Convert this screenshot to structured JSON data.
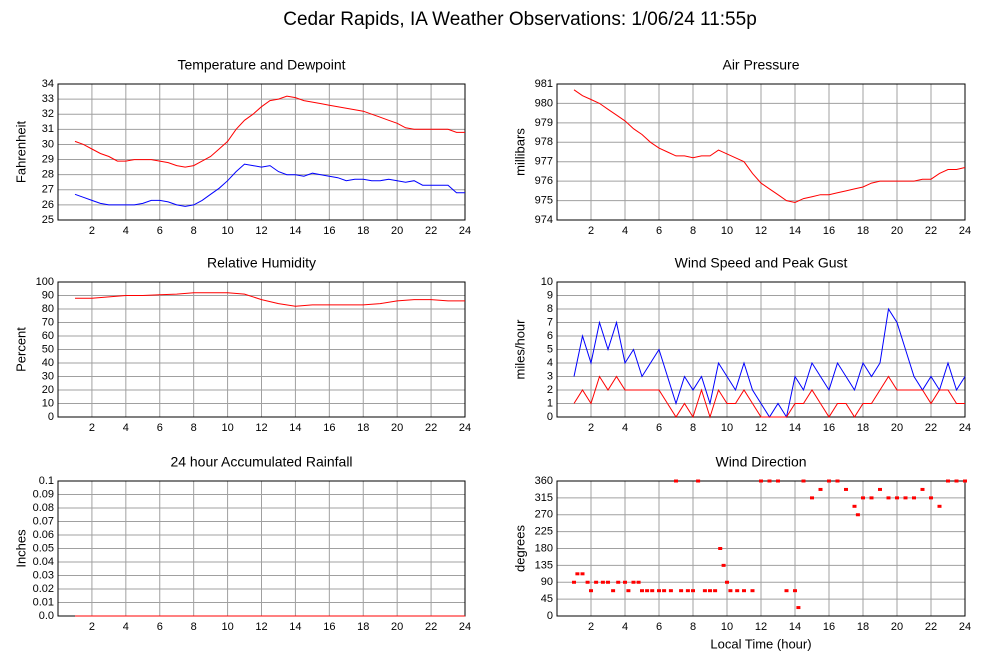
{
  "title": "Cedar Rapids, IA Weather Observations: 1/06/24 11:55p",
  "chart_data": [
    {
      "type": "line",
      "title": "Temperature and Dewpoint",
      "ylabel": "Fahrenheit",
      "x": [
        1,
        1.5,
        2,
        2.5,
        3,
        3.5,
        4,
        4.5,
        5,
        5.5,
        6,
        6.5,
        7,
        7.5,
        8,
        8.5,
        9,
        9.5,
        10,
        10.5,
        11,
        11.5,
        12,
        12.5,
        13,
        13.5,
        14,
        14.5,
        15,
        15.5,
        16,
        16.5,
        17,
        17.5,
        18,
        18.5,
        19,
        19.5,
        20,
        20.5,
        21,
        21.5,
        22,
        22.5,
        23,
        23.5,
        24
      ],
      "series": [
        {
          "color": "#ff0000",
          "values": [
            30.2,
            30.0,
            29.7,
            29.4,
            29.2,
            28.9,
            28.9,
            29.0,
            29.0,
            29.0,
            28.9,
            28.8,
            28.6,
            28.5,
            28.6,
            28.9,
            29.2,
            29.7,
            30.2,
            31.0,
            31.6,
            32.0,
            32.5,
            32.9,
            33.0,
            33.2,
            33.1,
            32.9,
            32.8,
            32.7,
            32.6,
            32.5,
            32.4,
            32.3,
            32.2,
            32.0,
            31.8,
            31.6,
            31.4,
            31.1,
            31.0,
            31.0,
            31.0,
            31.0,
            31.0,
            30.8,
            30.8
          ]
        },
        {
          "color": "#0000ff",
          "values": [
            26.7,
            26.5,
            26.3,
            26.1,
            26.0,
            26.0,
            26.0,
            26.0,
            26.1,
            26.3,
            26.3,
            26.2,
            26.0,
            25.9,
            26.0,
            26.3,
            26.7,
            27.1,
            27.6,
            28.2,
            28.7,
            28.6,
            28.5,
            28.6,
            28.2,
            28.0,
            28.0,
            27.9,
            28.1,
            28.0,
            27.9,
            27.8,
            27.6,
            27.7,
            27.7,
            27.6,
            27.6,
            27.7,
            27.6,
            27.5,
            27.6,
            27.3,
            27.3,
            27.3,
            27.3,
            26.8,
            26.8
          ]
        }
      ],
      "xlim": [
        0,
        24
      ],
      "xticks": [
        2,
        4,
        6,
        8,
        10,
        12,
        14,
        16,
        18,
        20,
        22,
        24
      ],
      "ylim": [
        25,
        34
      ],
      "yticks": [
        25,
        26,
        27,
        28,
        29,
        30,
        31,
        32,
        33,
        34
      ],
      "grid": true
    },
    {
      "type": "line",
      "title": "Air Pressure",
      "ylabel": "millibars",
      "x": [
        1,
        1.5,
        2,
        2.5,
        3,
        3.5,
        4,
        4.5,
        5,
        5.5,
        6,
        6.5,
        7,
        7.5,
        8,
        8.5,
        9,
        9.5,
        10,
        10.5,
        11,
        11.5,
        12,
        12.5,
        13,
        13.5,
        14,
        14.5,
        15,
        15.5,
        16,
        16.5,
        17,
        17.5,
        18,
        18.5,
        19,
        19.5,
        20,
        20.5,
        21,
        21.5,
        22,
        22.5,
        23,
        23.5,
        24
      ],
      "series": [
        {
          "color": "#ff0000",
          "values": [
            980.7,
            980.4,
            980.2,
            980.0,
            979.7,
            979.4,
            979.1,
            978.7,
            978.4,
            978.0,
            977.7,
            977.5,
            977.3,
            977.3,
            977.2,
            977.3,
            977.3,
            977.6,
            977.4,
            977.2,
            977.0,
            976.4,
            975.9,
            975.6,
            975.3,
            975.0,
            974.9,
            975.1,
            975.2,
            975.3,
            975.3,
            975.4,
            975.5,
            975.6,
            975.7,
            975.9,
            976.0,
            976.0,
            976.0,
            976.0,
            976.0,
            976.1,
            976.1,
            976.4,
            976.6,
            976.6,
            976.7
          ]
        }
      ],
      "xlim": [
        0,
        24
      ],
      "xticks": [
        2,
        4,
        6,
        8,
        10,
        12,
        14,
        16,
        18,
        20,
        22,
        24
      ],
      "ylim": [
        974,
        981
      ],
      "yticks": [
        974,
        975,
        976,
        977,
        978,
        979,
        980,
        981
      ],
      "grid": true
    },
    {
      "type": "line",
      "title": "Relative Humidity",
      "ylabel": "Percent",
      "x": [
        1,
        2,
        3,
        4,
        5,
        6,
        7,
        8,
        9,
        10,
        11,
        12,
        13,
        14,
        15,
        16,
        17,
        18,
        19,
        20,
        21,
        22,
        23,
        24
      ],
      "series": [
        {
          "color": "#ff0000",
          "values": [
            88,
            88,
            89,
            90,
            90,
            90.5,
            91,
            92,
            92,
            92,
            91,
            87,
            84,
            82,
            83,
            83,
            83,
            83,
            84,
            86,
            87,
            87,
            86,
            86
          ]
        }
      ],
      "xlim": [
        0,
        24
      ],
      "xticks": [
        2,
        4,
        6,
        8,
        10,
        12,
        14,
        16,
        18,
        20,
        22,
        24
      ],
      "ylim": [
        0,
        100
      ],
      "yticks": [
        0,
        10,
        20,
        30,
        40,
        50,
        60,
        70,
        80,
        90,
        100
      ],
      "grid": true
    },
    {
      "type": "line",
      "title": "Wind Speed and Peak Gust",
      "ylabel": "miles/hour",
      "x": [
        1,
        1.5,
        2,
        2.5,
        3,
        3.5,
        4,
        4.5,
        5,
        5.5,
        6,
        6.5,
        7,
        7.5,
        8,
        8.5,
        9,
        9.5,
        10,
        10.5,
        11,
        11.5,
        12,
        12.5,
        13,
        13.5,
        14,
        14.5,
        15,
        15.5,
        16,
        16.5,
        17,
        17.5,
        18,
        18.5,
        19,
        19.5,
        20,
        20.5,
        21,
        21.5,
        22,
        22.5,
        23,
        23.5,
        24
      ],
      "series": [
        {
          "color": "#0000ff",
          "values": [
            3,
            6,
            4,
            7,
            5,
            7,
            4,
            5,
            3,
            4,
            5,
            3,
            1,
            3,
            2,
            3,
            1,
            4,
            3,
            2,
            4,
            2,
            1,
            0,
            1,
            0,
            3,
            2,
            4,
            3,
            2,
            4,
            3,
            2,
            4,
            3,
            4,
            8,
            7,
            5,
            3,
            2,
            3,
            2,
            4,
            2,
            3
          ]
        },
        {
          "color": "#ff0000",
          "values": [
            1,
            2,
            1,
            3,
            2,
            3,
            2,
            2,
            2,
            2,
            2,
            1,
            0,
            1,
            0,
            2,
            0,
            2,
            1,
            1,
            2,
            1,
            0,
            0,
            0,
            0,
            1,
            1,
            2,
            1,
            0,
            1,
            1,
            0,
            1,
            1,
            2,
            3,
            2,
            2,
            2,
            2,
            1,
            2,
            2,
            1,
            1
          ]
        }
      ],
      "xlim": [
        0,
        24
      ],
      "xticks": [
        2,
        4,
        6,
        8,
        10,
        12,
        14,
        16,
        18,
        20,
        22,
        24
      ],
      "ylim": [
        0,
        10
      ],
      "yticks": [
        0,
        1,
        2,
        3,
        4,
        5,
        6,
        7,
        8,
        9,
        10
      ],
      "grid": true
    },
    {
      "type": "line",
      "title": "24 hour Accumulated Rainfall",
      "ylabel": "Inches",
      "x": [
        1,
        24
      ],
      "series": [
        {
          "color": "#ff0000",
          "values": [
            0,
            0
          ]
        }
      ],
      "xlim": [
        0,
        24
      ],
      "xticks": [
        2,
        4,
        6,
        8,
        10,
        12,
        14,
        16,
        18,
        20,
        22,
        24
      ],
      "ylim": [
        0,
        0.1
      ],
      "yticks": [
        {
          "value": 0,
          "label": "0.0"
        },
        0.01,
        0.02,
        0.03,
        0.04,
        0.05,
        0.06,
        0.07,
        0.08,
        0.09,
        0.1
      ],
      "grid": true
    },
    {
      "type": "scatter",
      "title": "Wind Direction",
      "ylabel": "degrees",
      "xlabel": "Local Time (hour)",
      "x": [
        1,
        1.2,
        1.5,
        1.8,
        2,
        2.3,
        2.7,
        3,
        3.3,
        3.6,
        4,
        4.2,
        4.5,
        4.8,
        5,
        5.3,
        5.6,
        6,
        6.3,
        6.7,
        7,
        7.3,
        7.7,
        8,
        8.3,
        8.7,
        9,
        9.3,
        9.6,
        9.8,
        10,
        10.2,
        10.6,
        11,
        11.5,
        12,
        12.5,
        13,
        13.5,
        14,
        14.2,
        14.5,
        15,
        15.5,
        16,
        16.5,
        17,
        17.5,
        17.7,
        18,
        18.5,
        19,
        19.5,
        20,
        20.5,
        21,
        21.5,
        22,
        22.5,
        23,
        23.5,
        24
      ],
      "series": [
        {
          "color": "#ff0000",
          "values": [
            90,
            112.5,
            112.5,
            90,
            67.5,
            90,
            90,
            90,
            67.5,
            90,
            90,
            67.5,
            90,
            90,
            67.5,
            67.5,
            67.5,
            67.5,
            67.5,
            67.5,
            360,
            67.5,
            67.5,
            67.5,
            360,
            67.5,
            67.5,
            67.5,
            180,
            135,
            90,
            67.5,
            67.5,
            67.5,
            67.5,
            360,
            360,
            360,
            67.5,
            67.5,
            22.5,
            360,
            315,
            337.5,
            360,
            360,
            337.5,
            292.5,
            270,
            315,
            315,
            337.5,
            315,
            315,
            315,
            315,
            337.5,
            315,
            292.5,
            360,
            360,
            360
          ]
        }
      ],
      "xlim": [
        0,
        24
      ],
      "xticks": [
        2,
        4,
        6,
        8,
        10,
        12,
        14,
        16,
        18,
        20,
        22,
        24
      ],
      "ylim": [
        0,
        360
      ],
      "yticks": [
        0,
        45,
        90,
        135,
        180,
        225,
        270,
        315,
        360
      ],
      "grid": true
    }
  ]
}
